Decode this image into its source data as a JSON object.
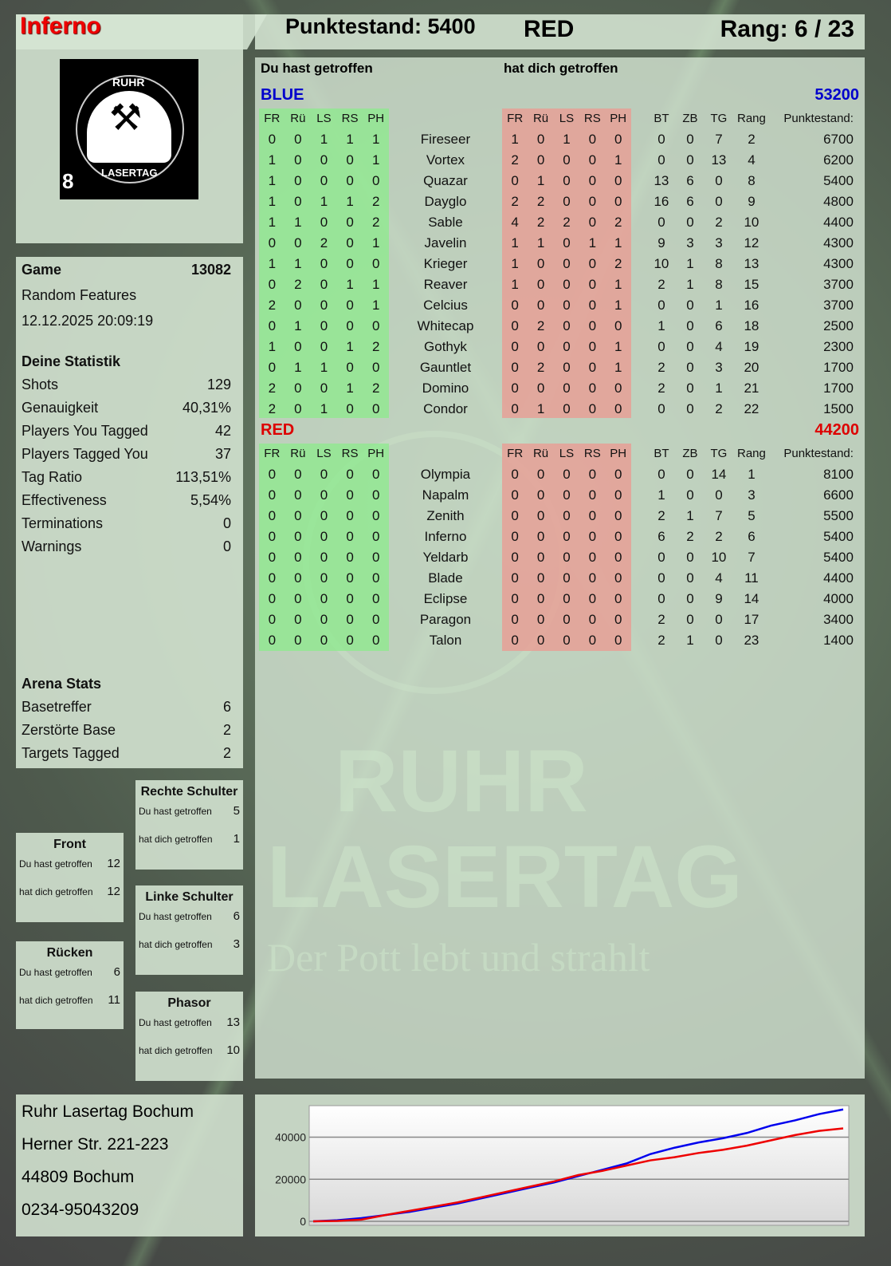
{
  "player": {
    "name": "Inferno",
    "logo_text_top": "RUHR",
    "logo_text_bottom": "LASERTAG",
    "logo_number": "8"
  },
  "header": {
    "score_label": "Punktestand: 5400",
    "team": "RED",
    "rank_label": "Rang: 6 / 23"
  },
  "main": {
    "you_hit_label": "Du hast getroffen",
    "hit_you_label": "hat dich getroffen",
    "columns": [
      "FR",
      "Rü",
      "LS",
      "RS",
      "PH",
      "",
      "FR",
      "Rü",
      "LS",
      "RS",
      "PH",
      "",
      "BT",
      "ZB",
      "TG",
      "Rang",
      "Punktestand:"
    ],
    "teams": [
      {
        "name": "BLUE",
        "score": "53200",
        "color": "#0000cc",
        "players": [
          [
            "0",
            "0",
            "1",
            "1",
            "1",
            "Fireseer",
            "1",
            "0",
            "1",
            "0",
            "0",
            "0",
            "0",
            "7",
            "2",
            "6700"
          ],
          [
            "1",
            "0",
            "0",
            "0",
            "1",
            "Vortex",
            "2",
            "0",
            "0",
            "0",
            "1",
            "0",
            "0",
            "13",
            "4",
            "6200"
          ],
          [
            "1",
            "0",
            "0",
            "0",
            "0",
            "Quazar",
            "0",
            "1",
            "0",
            "0",
            "0",
            "13",
            "6",
            "0",
            "8",
            "5400"
          ],
          [
            "1",
            "0",
            "1",
            "1",
            "2",
            "Dayglo",
            "2",
            "2",
            "0",
            "0",
            "0",
            "16",
            "6",
            "0",
            "9",
            "4800"
          ],
          [
            "1",
            "1",
            "0",
            "0",
            "2",
            "Sable",
            "4",
            "2",
            "2",
            "0",
            "2",
            "0",
            "0",
            "2",
            "10",
            "4400"
          ],
          [
            "0",
            "0",
            "2",
            "0",
            "1",
            "Javelin",
            "1",
            "1",
            "0",
            "1",
            "1",
            "9",
            "3",
            "3",
            "12",
            "4300"
          ],
          [
            "1",
            "1",
            "0",
            "0",
            "0",
            "Krieger",
            "1",
            "0",
            "0",
            "0",
            "2",
            "10",
            "1",
            "8",
            "13",
            "4300"
          ],
          [
            "0",
            "2",
            "0",
            "1",
            "1",
            "Reaver",
            "1",
            "0",
            "0",
            "0",
            "1",
            "2",
            "1",
            "8",
            "15",
            "3700"
          ],
          [
            "2",
            "0",
            "0",
            "0",
            "1",
            "Celcius",
            "0",
            "0",
            "0",
            "0",
            "1",
            "0",
            "0",
            "1",
            "16",
            "3700"
          ],
          [
            "0",
            "1",
            "0",
            "0",
            "0",
            "Whitecap",
            "0",
            "2",
            "0",
            "0",
            "0",
            "1",
            "0",
            "6",
            "18",
            "2500"
          ],
          [
            "1",
            "0",
            "0",
            "1",
            "2",
            "Gothyk",
            "0",
            "0",
            "0",
            "0",
            "1",
            "0",
            "0",
            "4",
            "19",
            "2300"
          ],
          [
            "0",
            "1",
            "1",
            "0",
            "0",
            "Gauntlet",
            "0",
            "2",
            "0",
            "0",
            "1",
            "2",
            "0",
            "3",
            "20",
            "1700"
          ],
          [
            "2",
            "0",
            "0",
            "1",
            "2",
            "Domino",
            "0",
            "0",
            "0",
            "0",
            "0",
            "2",
            "0",
            "1",
            "21",
            "1700"
          ],
          [
            "2",
            "0",
            "1",
            "0",
            "0",
            "Condor",
            "0",
            "1",
            "0",
            "0",
            "0",
            "0",
            "0",
            "2",
            "22",
            "1500"
          ]
        ]
      },
      {
        "name": "RED",
        "score": "44200",
        "color": "#dd0000",
        "players": [
          [
            "0",
            "0",
            "0",
            "0",
            "0",
            "Olympia",
            "0",
            "0",
            "0",
            "0",
            "0",
            "0",
            "0",
            "14",
            "1",
            "8100"
          ],
          [
            "0",
            "0",
            "0",
            "0",
            "0",
            "Napalm",
            "0",
            "0",
            "0",
            "0",
            "0",
            "1",
            "0",
            "0",
            "3",
            "6600"
          ],
          [
            "0",
            "0",
            "0",
            "0",
            "0",
            "Zenith",
            "0",
            "0",
            "0",
            "0",
            "0",
            "2",
            "1",
            "7",
            "5",
            "5500"
          ],
          [
            "0",
            "0",
            "0",
            "0",
            "0",
            "Inferno",
            "0",
            "0",
            "0",
            "0",
            "0",
            "6",
            "2",
            "2",
            "6",
            "5400"
          ],
          [
            "0",
            "0",
            "0",
            "0",
            "0",
            "Yeldarb",
            "0",
            "0",
            "0",
            "0",
            "0",
            "0",
            "0",
            "10",
            "7",
            "5400"
          ],
          [
            "0",
            "0",
            "0",
            "0",
            "0",
            "Blade",
            "0",
            "0",
            "0",
            "0",
            "0",
            "0",
            "0",
            "4",
            "11",
            "4400"
          ],
          [
            "0",
            "0",
            "0",
            "0",
            "0",
            "Eclipse",
            "0",
            "0",
            "0",
            "0",
            "0",
            "0",
            "0",
            "9",
            "14",
            "4000"
          ],
          [
            "0",
            "0",
            "0",
            "0",
            "0",
            "Paragon",
            "0",
            "0",
            "0",
            "0",
            "0",
            "2",
            "0",
            "0",
            "17",
            "3400"
          ],
          [
            "0",
            "0",
            "0",
            "0",
            "0",
            "Talon",
            "0",
            "0",
            "0",
            "0",
            "0",
            "2",
            "1",
            "0",
            "23",
            "1400"
          ]
        ]
      }
    ]
  },
  "game": {
    "label": "Game",
    "id": "13082",
    "mode": "Random Features",
    "datetime": "12.12.2025 20:09:19"
  },
  "stats": {
    "title": "Deine Statistik",
    "items": [
      {
        "label": "Shots",
        "value": "129"
      },
      {
        "label": "Genauigkeit",
        "value": "40,31%"
      },
      {
        "label": "Players You Tagged",
        "value": "42"
      },
      {
        "label": "Players Tagged You",
        "value": "37"
      },
      {
        "label": "Tag Ratio",
        "value": "113,51%"
      },
      {
        "label": "Effectiveness",
        "value": "5,54%"
      },
      {
        "label": "Terminations",
        "value": "0"
      },
      {
        "label": "Warnings",
        "value": "0"
      }
    ]
  },
  "arena": {
    "title": "Arena Stats",
    "items": [
      {
        "label": "Basetreffer",
        "value": "6"
      },
      {
        "label": "Zerstörte Base",
        "value": "2"
      },
      {
        "label": "Targets Tagged",
        "value": "2"
      }
    ]
  },
  "zones": {
    "you_hit": "Du hast getroffen",
    "hit_you": "hat dich getroffen",
    "items": [
      {
        "name": "Rechte Schulter",
        "you": "5",
        "them": "1"
      },
      {
        "name": "Front",
        "you": "12",
        "them": "12"
      },
      {
        "name": "Linke Schulter",
        "you": "6",
        "them": "3"
      },
      {
        "name": "Rücken",
        "you": "6",
        "them": "11"
      },
      {
        "name": "Phasor",
        "you": "13",
        "them": "10"
      }
    ]
  },
  "address": {
    "lines": [
      "Ruhr Lasertag Bochum",
      "Herner Str. 221-223",
      "44809 Bochum",
      "0234-95043209"
    ]
  },
  "watermark": {
    "line1": "RUHR",
    "line2": "LASERTAG",
    "slogan": "Der Pott lebt und strahlt"
  },
  "chart_data": {
    "type": "line",
    "ylim": [
      0,
      55000
    ],
    "yticks": [
      0,
      20000,
      40000
    ],
    "ytick_labels": [
      "0",
      "20000",
      "40000"
    ],
    "grid": true,
    "series": [
      {
        "color": "#0000ee",
        "values": [
          0,
          500,
          1500,
          3000,
          4500,
          6500,
          8500,
          11000,
          13500,
          16000,
          18500,
          21500,
          24500,
          27500,
          32000,
          35000,
          37500,
          39500,
          42000,
          45500,
          48000,
          51000,
          53200
        ]
      },
      {
        "color": "#ee0000",
        "values": [
          0,
          200,
          800,
          3000,
          5000,
          7000,
          9000,
          11500,
          14000,
          16500,
          19000,
          22000,
          24000,
          26500,
          29000,
          30500,
          32500,
          34000,
          36000,
          38500,
          41000,
          43000,
          44200
        ]
      }
    ]
  }
}
